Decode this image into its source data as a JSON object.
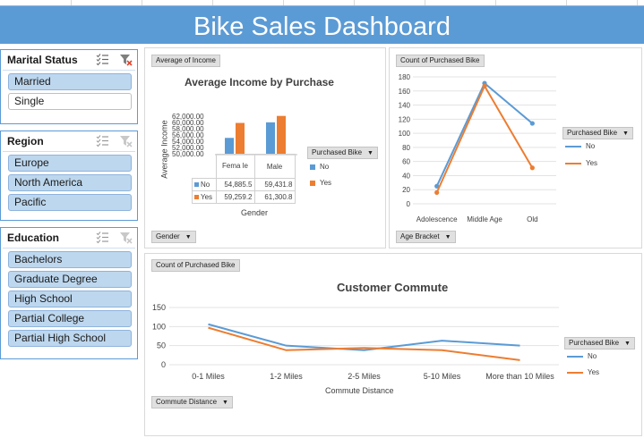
{
  "dashboard": {
    "title": "Bike Sales Dashboard"
  },
  "colors": {
    "accent": "#5b9bd5",
    "no_series": "#5b9bd5",
    "yes_series": "#ed7d31",
    "slicer_selected": "#bdd7ee"
  },
  "slicers": {
    "marital_status": {
      "title": "Marital Status",
      "items": [
        {
          "label": "Married",
          "selected": true
        },
        {
          "label": "Single",
          "selected": false
        }
      ]
    },
    "region": {
      "title": "Region",
      "items": [
        {
          "label": "Europe",
          "selected": true
        },
        {
          "label": "North America",
          "selected": true
        },
        {
          "label": "Pacific",
          "selected": true
        }
      ]
    },
    "education": {
      "title": "Education",
      "items": [
        {
          "label": "Bachelors",
          "selected": true
        },
        {
          "label": "Graduate Degree",
          "selected": true
        },
        {
          "label": "High School",
          "selected": true
        },
        {
          "label": "Partial College",
          "selected": true
        },
        {
          "label": "Partial High School",
          "selected": true
        }
      ]
    },
    "icons": {
      "multiselect": "multi-select-icon",
      "clear": "clear-filter-icon"
    }
  },
  "income_chart": {
    "value_button": "Average of Income",
    "axis_button": "Gender",
    "legend_button": "Purchased Bike",
    "table_header_female": "Fema le",
    "table_header_male": "Male",
    "table_rows": [
      {
        "label": "No",
        "female": "54,885.5",
        "male": "59,431.8"
      },
      {
        "label": "Yes",
        "female": "59,259.2",
        "male": "61,300.8"
      }
    ],
    "y_ticks": [
      "62,000.00",
      "60,000.00",
      "58,000.00",
      "56,000.00",
      "54,000.00",
      "52,000.00",
      "50,000.00"
    ]
  },
  "age_chart": {
    "value_button": "Count of Purchased Bike",
    "axis_button": "Age Bracket",
    "legend_button": "Purchased Bike"
  },
  "commute_chart": {
    "value_button": "Count of Purchased Bike",
    "axis_button": "Commute Distance",
    "legend_button": "Purchased Bike"
  },
  "chart_data": [
    {
      "type": "bar",
      "title": "Average Income by Purchase",
      "xlabel": "Gender",
      "ylabel": "Average Income",
      "categories": [
        "Female",
        "Male"
      ],
      "series": [
        {
          "name": "No",
          "values": [
            54885.5,
            59431.8
          ]
        },
        {
          "name": "Yes",
          "values": [
            59259.2,
            61300.8
          ]
        }
      ],
      "ylim": [
        50000,
        62000
      ],
      "legend": "right"
    },
    {
      "type": "line",
      "title": "",
      "xlabel": "",
      "ylabel": "",
      "categories": [
        "Adolescence",
        "Middle Age",
        "Old"
      ],
      "series": [
        {
          "name": "No",
          "values": [
            25,
            171,
            114
          ]
        },
        {
          "name": "Yes",
          "values": [
            16,
            167,
            51
          ]
        }
      ],
      "y_ticks": [
        0,
        20,
        40,
        60,
        80,
        100,
        120,
        140,
        160,
        180
      ],
      "ylim": [
        0,
        180
      ],
      "grid": true,
      "legend": "right"
    },
    {
      "type": "line",
      "title": "Customer Commute",
      "xlabel": "Commute Distance",
      "ylabel": "",
      "categories": [
        "0-1 Miles",
        "1-2 Miles",
        "2-5 Miles",
        "5-10 Miles",
        "More than 10 Miles"
      ],
      "series": [
        {
          "name": "No",
          "values": [
            106,
            50,
            38,
            63,
            50
          ]
        },
        {
          "name": "Yes",
          "values": [
            97,
            38,
            44,
            38,
            12
          ]
        }
      ],
      "y_ticks": [
        0,
        50,
        100,
        150
      ],
      "ylim": [
        0,
        150
      ],
      "grid": true,
      "legend": "right"
    }
  ]
}
